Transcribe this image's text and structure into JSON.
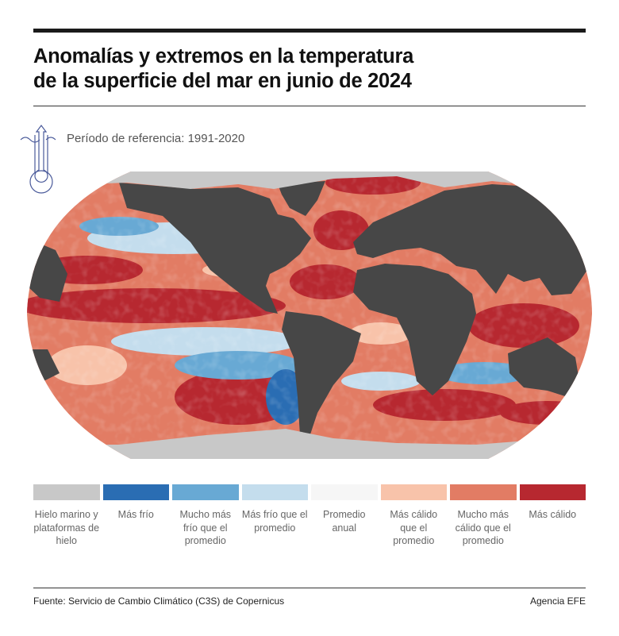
{
  "title": {
    "line1": "Anomalías y extremos en la temperatura",
    "line2": "de la superficie del mar en junio de 2024"
  },
  "reference": {
    "text": "Período de referencia: 1991-2020",
    "icon": "thermometer-icon"
  },
  "colors": {
    "land": "#474747",
    "ice": "#c8c8c8"
  },
  "legend": [
    {
      "label": "Hielo marino y plataformas de hielo",
      "color": "#c8c8c8"
    },
    {
      "label": "Más frío",
      "color": "#2a6db3"
    },
    {
      "label": "Mucho más frío que el promedio",
      "color": "#68a9d4"
    },
    {
      "label": "Más frío que el promedio",
      "color": "#c4dded"
    },
    {
      "label": "Promedio anual",
      "color": "#f6f6f6"
    },
    {
      "label": "Más cálido que el promedio",
      "color": "#f8c3aa"
    },
    {
      "label": "Mucho más cálido que el promedio",
      "color": "#e27c64"
    },
    {
      "label": "Más cálido",
      "color": "#b72830"
    }
  ],
  "footer": {
    "source": "Fuente:  Servicio de Cambio Climático (C3S) de Copernicus",
    "credit": "Agencia EFE"
  }
}
